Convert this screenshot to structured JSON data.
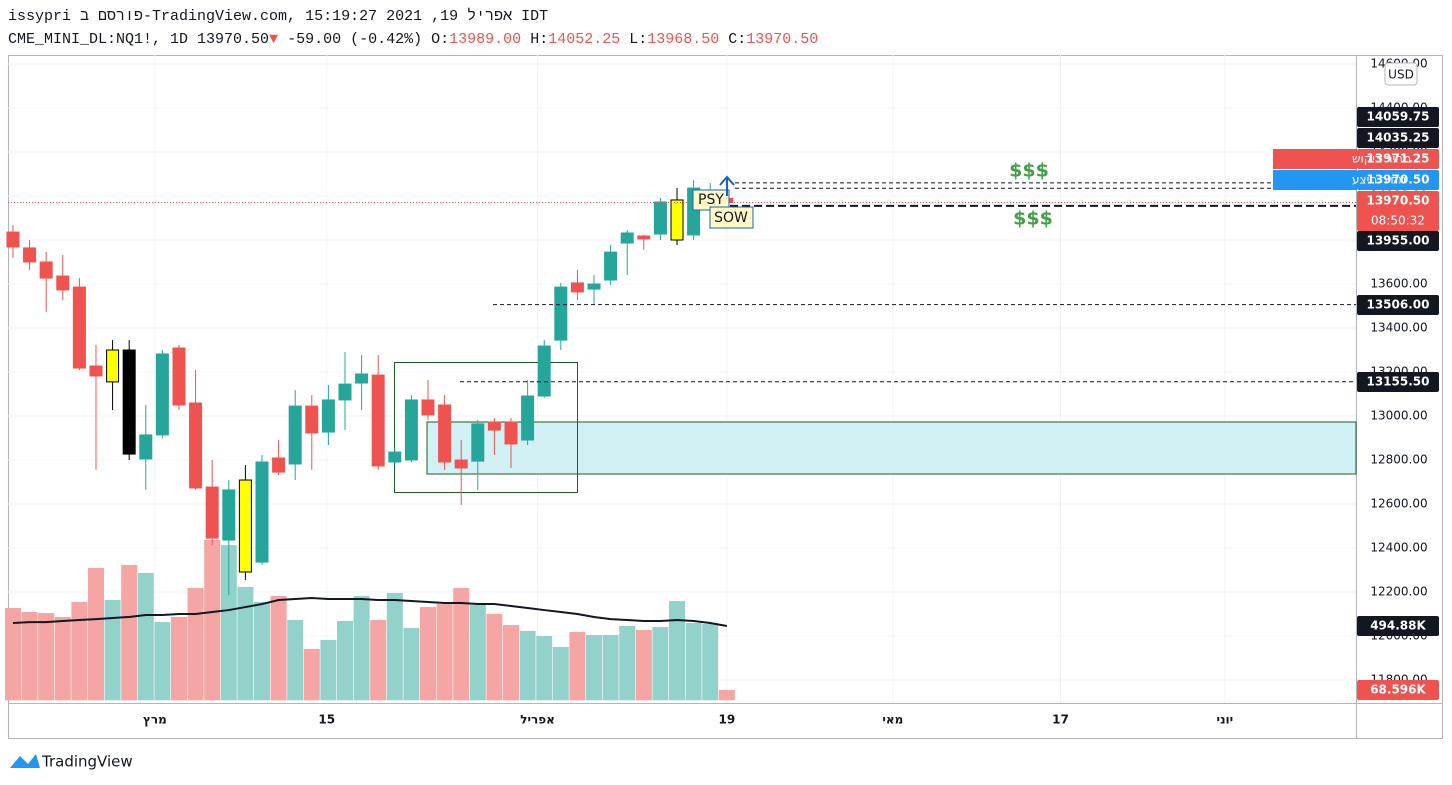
{
  "header": {
    "title": "issypri פורסם ב-TradingView.com, אפריל 19, 2021 15:19:27 IDT",
    "symbol": "CME_MINI_DL:NQ1!, 1D",
    "price": "13970.50",
    "change": "-59.00 (-0.42%)",
    "ohlc": [
      {
        "label": "O:",
        "value": "13989.00"
      },
      {
        "label": "H:",
        "value": "14052.25"
      },
      {
        "label": "L:",
        "value": "13968.50"
      },
      {
        "label": "C:",
        "value": "13970.50"
      }
    ]
  },
  "chart_data": {
    "type": "candlestick",
    "x": [
      0,
      1,
      2,
      3,
      4,
      5,
      6,
      7,
      8,
      9,
      10,
      11,
      12,
      13,
      14,
      15,
      16,
      17,
      18,
      19,
      20,
      21,
      22,
      23,
      24,
      25,
      26,
      27,
      28,
      29,
      30,
      31,
      32,
      33,
      34,
      35,
      36,
      37,
      38,
      39,
      40,
      41,
      42,
      43
    ],
    "open": [
      13836,
      13764,
      13700,
      13636,
      13586,
      13227,
      13155,
      13300,
      12805,
      12914,
      13309,
      13059,
      12677,
      12436,
      12291,
      12336,
      12809,
      12782,
      13045,
      12927,
      13073,
      13150,
      13186,
      12791,
      12800,
      13073,
      13050,
      12800,
      12795,
      12973,
      12973,
      12891,
      13091,
      13345,
      13605,
      13577,
      13618,
      13786,
      13818,
      13827,
      13800,
      13823,
      13959,
      13989
    ],
    "high": [
      13868,
      13800,
      13745,
      13732,
      13627,
      13323,
      13345,
      13345,
      13050,
      13300,
      13323,
      13209,
      12800,
      12709,
      12777,
      12823,
      12891,
      13118,
      13095,
      13141,
      13291,
      13277,
      13277,
      12855,
      13095,
      13164,
      13095,
      12891,
      12982,
      12991,
      12991,
      13164,
      13345,
      13605,
      13664,
      13641,
      13777,
      13845,
      13823,
      13991,
      14036,
      14073,
      14059.75,
      14052.25
    ],
    "low": [
      13718,
      13664,
      13473,
      13527,
      13209,
      12755,
      13027,
      12800,
      12664,
      12900,
      13027,
      12664,
      12414,
      12186,
      12255,
      12323,
      12732,
      12709,
      12755,
      12868,
      12936,
      13027,
      12755,
      12777,
      12791,
      12982,
      12755,
      12595,
      12664,
      12823,
      12764,
      12868,
      13082,
      13300,
      13527,
      13505,
      13595,
      13641,
      13755,
      13800,
      13777,
      13800,
      13955,
      13968.5
    ],
    "close": [
      13768,
      13700,
      13627,
      13573,
      13218,
      13182,
      13300,
      12827,
      12914,
      13282,
      13050,
      12673,
      12445,
      12664,
      12709,
      12791,
      12745,
      13045,
      12923,
      13073,
      13145,
      13191,
      12773,
      12836,
      13073,
      13005,
      12791,
      12764,
      12964,
      12936,
      12873,
      13091,
      13318,
      13586,
      13564,
      13600,
      13745,
      13832,
      13805,
      13973,
      13982,
      14036,
      14010,
      13970.5
    ],
    "colors": [
      "#ef5350",
      "#ef5350",
      "#ef5350",
      "#ef5350",
      "#ef5350",
      "#ef5350",
      "#ffff00",
      "#000000",
      "#26a69a",
      "#26a69a",
      "#ef5350",
      "#ef5350",
      "#ef5350",
      "#26a69a",
      "#ffff00",
      "#26a69a",
      "#ef5350",
      "#26a69a",
      "#ef5350",
      "#26a69a",
      "#26a69a",
      "#26a69a",
      "#ef5350",
      "#26a69a",
      "#26a69a",
      "#ef5350",
      "#ef5350",
      "#ef5350",
      "#26a69a",
      "#ef5350",
      "#ef5350",
      "#26a69a",
      "#26a69a",
      "#26a69a",
      "#ef5350",
      "#26a69a",
      "#26a69a",
      "#26a69a",
      "#ef5350",
      "#26a69a",
      "#ffff00",
      "#26a69a",
      "#26a69a",
      "#ef5350"
    ],
    "xlim": [
      -0.3,
      80.9
    ],
    "ylim": [
      11695.5,
      14640.9
    ],
    "xticks": [
      {
        "value": 8.55,
        "label": "מרץ"
      },
      {
        "value": 18.9,
        "label": "15"
      },
      {
        "value": 31.6,
        "label": "אפריל"
      },
      {
        "value": 43,
        "label": "19"
      },
      {
        "value": 53,
        "label": "מאי"
      },
      {
        "value": 63.1,
        "label": "17"
      },
      {
        "value": 73,
        "label": "יוני"
      }
    ],
    "yticks": [
      {
        "value": 14600,
        "label": "14600.00"
      },
      {
        "value": 14400,
        "label": "14400.00"
      },
      {
        "value": 14200,
        "label": "14200.00"
      },
      {
        "value": 14000,
        "label": "14000.00"
      },
      {
        "value": 13800,
        "label": "13800.00"
      },
      {
        "value": 13600,
        "label": "13600.00"
      },
      {
        "value": 13400,
        "label": "13400.00"
      },
      {
        "value": 13200,
        "label": "13200.00"
      },
      {
        "value": 13000,
        "label": "13000.00"
      },
      {
        "value": 12800,
        "label": "12800.00"
      },
      {
        "value": 12600,
        "label": "12600.00"
      },
      {
        "value": 12400,
        "label": "12400.00"
      },
      {
        "value": 12200,
        "label": "12200.00"
      },
      {
        "value": 12000,
        "label": "12000.00"
      },
      {
        "value": 11800,
        "label": "11800.00"
      }
    ],
    "grid": true,
    "currency": "USD",
    "volume": {
      "values": [
        615,
        588,
        581,
        555,
        655,
        881,
        668,
        901,
        848,
        521,
        555,
        748,
        1068,
        1034,
        755,
        655,
        695,
        535,
        342,
        402,
        528,
        695,
        535,
        715,
        482,
        621,
        641,
        748,
        635,
        575,
        501,
        462,
        428,
        355,
        455,
        435,
        435,
        495,
        468,
        488,
        661,
        515,
        508,
        68.596
      ],
      "last_value_label": "68.596K",
      "up_color": "#93d2cb",
      "down_color": "#f5a5a4",
      "ma": {
        "values": [
          515,
          521,
          521,
          528,
          535,
          541,
          548,
          555,
          568,
          568,
          575,
          575,
          588,
          601,
          621,
          641,
          668,
          675,
          681,
          675,
          675,
          675,
          668,
          668,
          661,
          655,
          648,
          648,
          641,
          641,
          628,
          615,
          601,
          588,
          575,
          555,
          541,
          535,
          528,
          528,
          535,
          528,
          515,
          494.88
        ],
        "last_value_label": "494.88K",
        "color": "#131722"
      }
    },
    "levels": [
      {
        "value": 14059.75,
        "label": "14059.75",
        "color": "#131722"
      },
      {
        "value": 14035.25,
        "label": "14035.25",
        "color": "#131722"
      },
      {
        "value": 13971.25,
        "label": "13971.25",
        "color": "#ef5350",
        "name": "מחיר ביקוש"
      },
      {
        "value": 13970.5,
        "label": "13970.50",
        "color": "#2196f3",
        "name": "מחיר היצע"
      },
      {
        "value": 13970.5,
        "label": "13970.50",
        "color": "#ef5350",
        "countdown": "08:50:32"
      },
      {
        "value": 13955,
        "label": "13955.00",
        "color": "#131722"
      },
      {
        "value": 13506,
        "label": "13506.00",
        "color": "#131722"
      },
      {
        "value": 13155.5,
        "label": "13155.50",
        "color": "#131722"
      }
    ],
    "annotations": [
      "$$$",
      "$$$",
      "PSY",
      "SOW"
    ]
  },
  "footer": {
    "brand": "TradingView"
  }
}
